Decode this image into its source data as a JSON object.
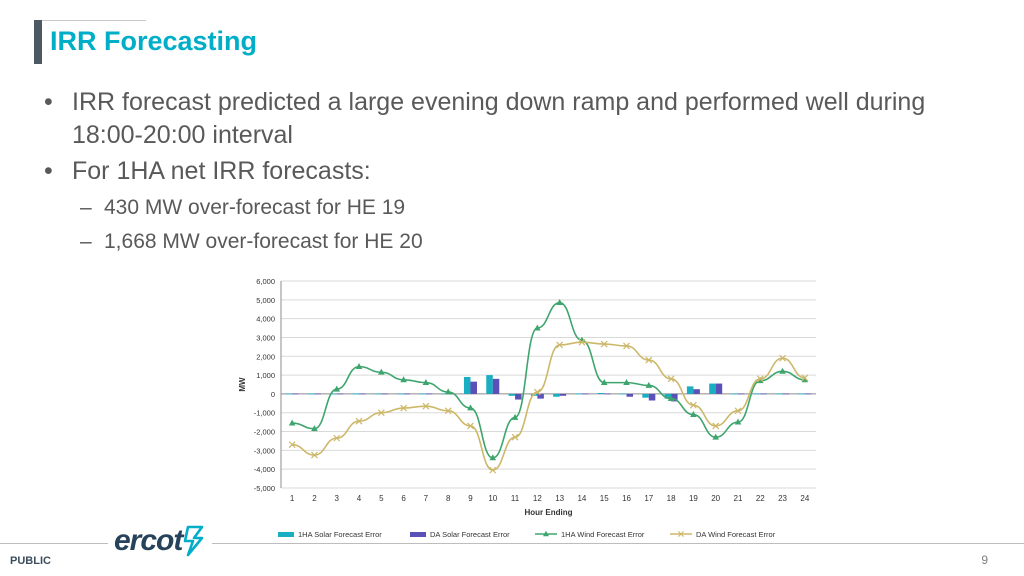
{
  "slide": {
    "title": "IRR Forecasting",
    "bullets": [
      "IRR forecast predicted a large evening down ramp and performed well during 18:00-20:00 interval",
      "For 1HA net IRR forecasts:"
    ],
    "sub_bullets": [
      "430 MW over-forecast for HE 19",
      "1,668 MW over-forecast for HE 20"
    ]
  },
  "footer": {
    "classification": "PUBLIC",
    "page_number": "9",
    "logo_text": "ercot"
  },
  "colors": {
    "title": "#00aec7",
    "solar_1ha": "#1aaec2",
    "solar_da": "#5b4fb8",
    "wind_1ha": "#3fa56e",
    "wind_da": "#cdb86a"
  },
  "chart_data": {
    "type": "bar+line",
    "title": "",
    "xlabel": "Hour Ending",
    "ylabel": "MW",
    "ylim": [
      -5000,
      6000
    ],
    "yticks": [
      6000,
      5000,
      4000,
      3000,
      2000,
      1000,
      0,
      -1000,
      -2000,
      -3000,
      -4000,
      -5000
    ],
    "ytick_labels": [
      "6,000",
      "5,000",
      "4,000",
      "3,000",
      "2,000",
      "1,000",
      "0",
      "-1,000",
      "-2,000",
      "-3,000",
      "-4,000",
      "-5,000"
    ],
    "categories": [
      "1",
      "2",
      "3",
      "4",
      "5",
      "6",
      "7",
      "8",
      "9",
      "10",
      "11",
      "12",
      "13",
      "14",
      "15",
      "16",
      "17",
      "18",
      "19",
      "20",
      "21",
      "22",
      "23",
      "24"
    ],
    "legend_position": "bottom",
    "grid": true,
    "series": [
      {
        "name": "1HA Solar Forecast Error",
        "kind": "bar",
        "color": "#1aaec2",
        "values": [
          0,
          0,
          0,
          0,
          0,
          0,
          0,
          0,
          900,
          1000,
          -100,
          -100,
          -150,
          0,
          50,
          0,
          -200,
          -250,
          400,
          550,
          0,
          0,
          0,
          0
        ]
      },
      {
        "name": "DA Solar Forecast Error",
        "kind": "bar",
        "color": "#5b4fb8",
        "values": [
          0,
          0,
          0,
          0,
          0,
          0,
          0,
          0,
          650,
          800,
          -300,
          -250,
          -100,
          0,
          0,
          -150,
          -350,
          -400,
          250,
          550,
          0,
          0,
          0,
          0
        ]
      },
      {
        "name": "1HA Wind Forecast Error",
        "kind": "line",
        "marker": "triangle",
        "color": "#3fa56e",
        "values": [
          -1550,
          -1850,
          250,
          1450,
          1150,
          750,
          600,
          100,
          -750,
          -3400,
          -1250,
          3500,
          4850,
          2850,
          600,
          600,
          450,
          -250,
          -1100,
          -2300,
          -1500,
          700,
          1200,
          750
        ]
      },
      {
        "name": "DA Wind Forecast Error",
        "kind": "line",
        "marker": "x",
        "color": "#cdb86a",
        "values": [
          -2700,
          -3250,
          -2350,
          -1450,
          -1000,
          -750,
          -650,
          -900,
          -1700,
          -4050,
          -2300,
          100,
          2600,
          2750,
          2650,
          2550,
          1800,
          800,
          -600,
          -1700,
          -900,
          800,
          1900,
          850
        ]
      }
    ]
  }
}
